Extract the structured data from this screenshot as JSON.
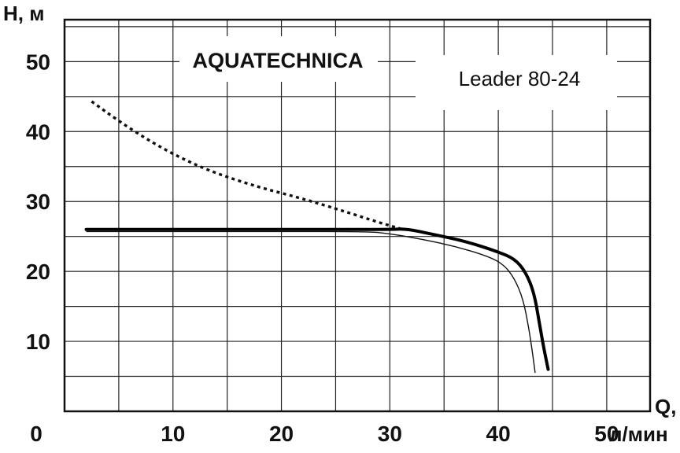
{
  "chart_data": {
    "type": "line",
    "brand": "AQUATECHNICA",
    "model": "Leader 80-24",
    "y_axis_label": "H, м",
    "x_axis_label_top": "Q,",
    "x_axis_label_unit": "л/мин",
    "x_tick_labels": [
      "0",
      "10",
      "20",
      "30",
      "40",
      "50"
    ],
    "y_tick_labels": [
      "10",
      "20",
      "30",
      "40",
      "50"
    ],
    "xlim": [
      0,
      54
    ],
    "ylim": [
      0,
      56
    ],
    "grid": true,
    "series": [
      {
        "style": "dotted",
        "points": [
          [
            2.5,
            44.3
          ],
          [
            5,
            41.5
          ],
          [
            8,
            38.5
          ],
          [
            11,
            36
          ],
          [
            14,
            34
          ],
          [
            18,
            32
          ],
          [
            22,
            30.4
          ],
          [
            26,
            28.5
          ],
          [
            29,
            27
          ],
          [
            31,
            26.1
          ]
        ]
      },
      {
        "style": "bold",
        "points": [
          [
            2,
            26
          ],
          [
            10,
            26
          ],
          [
            20,
            26
          ],
          [
            30,
            26
          ],
          [
            31.5,
            26.1
          ],
          [
            34,
            25.3
          ],
          [
            37,
            24.3
          ],
          [
            40,
            22.8
          ],
          [
            41.5,
            21.8
          ],
          [
            42.5,
            20
          ],
          [
            43.3,
            17
          ],
          [
            43.8,
            12.5
          ],
          [
            44.2,
            9
          ],
          [
            44.6,
            6
          ]
        ]
      },
      {
        "style": "thin",
        "points": [
          [
            2,
            25.7
          ],
          [
            10,
            25.7
          ],
          [
            20,
            25.7
          ],
          [
            28,
            25.7
          ],
          [
            30,
            25.4
          ],
          [
            33,
            24.6
          ],
          [
            36,
            23.6
          ],
          [
            39,
            22.2
          ],
          [
            40.5,
            21
          ],
          [
            41.5,
            19
          ],
          [
            42.3,
            16
          ],
          [
            42.8,
            12
          ],
          [
            43.1,
            9
          ],
          [
            43.4,
            5.5
          ]
        ]
      }
    ]
  }
}
